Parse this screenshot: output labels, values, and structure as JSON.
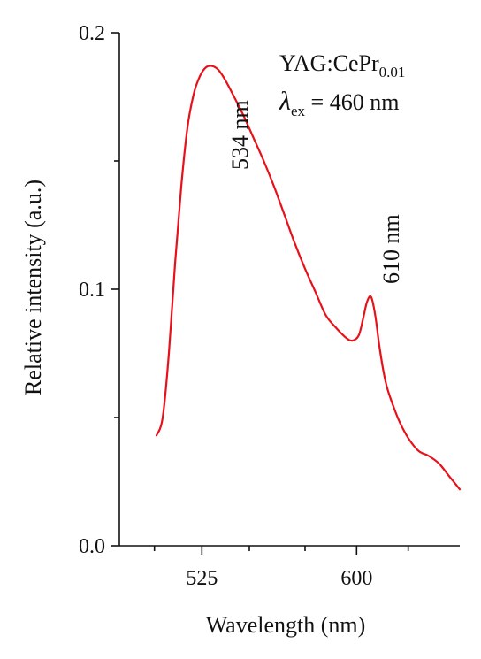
{
  "chart_data": {
    "type": "line",
    "xlabel": "Wavelength (nm)",
    "ylabel": "Relative intensity (a.u.)",
    "xlim": [
      485,
      650
    ],
    "ylim": [
      0.0,
      0.2
    ],
    "x_ticks": [
      525,
      600
    ],
    "x_tick_labels": [
      "525",
      "600"
    ],
    "x_minor_ticks": [
      502,
      548,
      575,
      625
    ],
    "y_ticks": [
      0.0,
      0.1,
      0.2
    ],
    "y_tick_labels": [
      "0.0",
      "0.1",
      "0.2"
    ],
    "y_minor_ticks": [
      0.05,
      0.15
    ],
    "grid": false,
    "series": [
      {
        "color": "#e8111a",
        "x": [
          503,
          506,
          509,
          512,
          515,
          518,
          521,
          524,
          527,
          530,
          533,
          536,
          540,
          545,
          550,
          555,
          560,
          565,
          570,
          575,
          580,
          585,
          590,
          595,
          598,
          601,
          603,
          605,
          607,
          609,
          611,
          613,
          615,
          618,
          621,
          625,
          630,
          635,
          640,
          645,
          650
        ],
        "y": [
          0.043,
          0.05,
          0.075,
          0.11,
          0.14,
          0.163,
          0.176,
          0.183,
          0.1865,
          0.187,
          0.1855,
          0.182,
          0.176,
          0.168,
          0.159,
          0.15,
          0.14,
          0.129,
          0.118,
          0.108,
          0.099,
          0.09,
          0.085,
          0.081,
          0.08,
          0.082,
          0.088,
          0.095,
          0.097,
          0.09,
          0.078,
          0.068,
          0.061,
          0.054,
          0.048,
          0.042,
          0.037,
          0.035,
          0.032,
          0.027,
          0.022
        ]
      }
    ],
    "annotations": {
      "sample_main": "YAG:CePr",
      "sample_sub": "0.01",
      "lambda_symbol": "λ",
      "lambda_sub": "ex",
      "lambda_value": " = 460 nm",
      "peak1": "534 nm",
      "peak2": "610 nm"
    }
  }
}
